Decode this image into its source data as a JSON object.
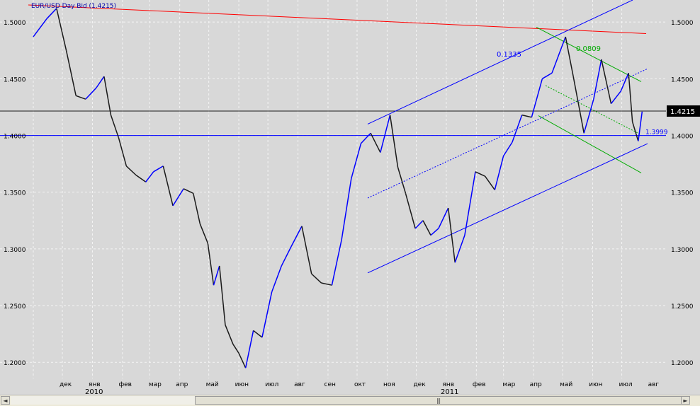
{
  "chart_data": {
    "type": "line",
    "title": "EUR/USD Day Bid (1.4215)",
    "current_price_label": "1.4215",
    "support_level_label": "1.3999",
    "channel_labels": [
      "0.1335",
      "0.0809"
    ],
    "y_ticks": [
      "1.5000",
      "1.4500",
      "1.4000",
      "1.3500",
      "1.3000",
      "1.2500",
      "1.2000"
    ],
    "ylim": [
      1.1858,
      1.5194
    ],
    "x_months": [
      "дек",
      "янв",
      "фев",
      "мар",
      "апр",
      "май",
      "июн",
      "июл",
      "авг",
      "сен",
      "окт",
      "ноя",
      "дек",
      "янв",
      "фев",
      "мар",
      "апр",
      "май",
      "июн",
      "июл",
      "авг"
    ],
    "x_years": [
      "2010",
      "2011"
    ],
    "grid": true,
    "colors": {
      "background": "#d8d8d8",
      "price_line": "#1a1a1a",
      "price_up": "#0000ff",
      "blue_lines": "#0000ff",
      "red_line": "#ff0000",
      "green_lines": "#00aa00",
      "label_box": "#000000"
    },
    "series": [
      {
        "x": [
          "2009-11-01",
          "2009-11-15",
          "2009-11-25",
          "2009-12-05",
          "2009-12-15",
          "2009-12-25",
          "2010-01-05",
          "2010-01-13",
          "2010-01-20",
          "2010-01-28",
          "2010-02-05",
          "2010-02-15",
          "2010-02-25",
          "2010-03-05",
          "2010-03-15",
          "2010-03-25",
          "2010-04-05",
          "2010-04-15",
          "2010-04-22",
          "2010-04-30",
          "2010-05-06",
          "2010-05-12",
          "2010-05-18",
          "2010-05-26",
          "2010-06-01",
          "2010-06-08",
          "2010-06-16",
          "2010-06-25",
          "2010-07-05",
          "2010-07-15",
          "2010-07-25",
          "2010-08-05",
          "2010-08-15",
          "2010-08-25",
          "2010-09-05",
          "2010-09-15",
          "2010-09-25",
          "2010-10-05",
          "2010-10-15",
          "2010-10-25",
          "2010-11-04",
          "2010-11-12",
          "2010-11-20",
          "2010-11-30",
          "2010-12-08",
          "2010-12-16",
          "2010-12-24",
          "2011-01-03",
          "2011-01-10",
          "2011-01-20",
          "2011-01-31",
          "2011-02-10",
          "2011-02-20",
          "2011-03-01",
          "2011-03-10",
          "2011-03-20",
          "2011-03-30",
          "2011-04-10",
          "2011-04-20",
          "2011-05-04",
          "2011-05-12",
          "2011-05-23",
          "2011-06-02",
          "2011-06-10",
          "2011-06-20",
          "2011-06-30",
          "2011-07-08",
          "2011-07-12",
          "2011-07-18",
          "2011-07-22"
        ],
        "y": [
          1.487,
          1.503,
          1.512,
          1.475,
          1.435,
          1.432,
          1.442,
          1.452,
          1.418,
          1.398,
          1.373,
          1.365,
          1.359,
          1.368,
          1.373,
          1.338,
          1.353,
          1.349,
          1.322,
          1.305,
          1.268,
          1.285,
          1.233,
          1.216,
          1.208,
          1.195,
          1.228,
          1.222,
          1.262,
          1.285,
          1.302,
          1.32,
          1.278,
          1.27,
          1.268,
          1.308,
          1.362,
          1.393,
          1.402,
          1.385,
          1.418,
          1.372,
          1.349,
          1.318,
          1.325,
          1.312,
          1.318,
          1.336,
          1.288,
          1.312,
          1.368,
          1.364,
          1.352,
          1.382,
          1.394,
          1.418,
          1.416,
          1.45,
          1.455,
          1.487,
          1.452,
          1.402,
          1.432,
          1.467,
          1.428,
          1.439,
          1.455,
          1.412,
          1.395,
          1.421
        ]
      }
    ]
  },
  "scrollbar": {
    "left_arrow": "◄",
    "right_arrow": "►",
    "grip": "|||"
  }
}
